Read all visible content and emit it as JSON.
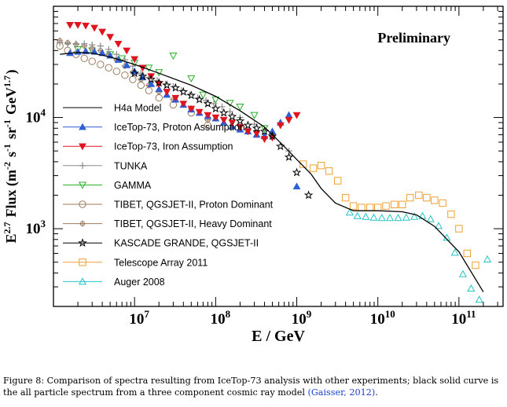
{
  "chart_data": {
    "type": "scatter",
    "annotation": "Preliminary",
    "xlabel": "E / GeV",
    "ylabel": "E^2.7 Flux (m^-2 s^-1 sr^-1 GeV^1.7)",
    "x_scale": "log",
    "y_scale": "log",
    "xlim": [
      1000000,
      350000000000
    ],
    "ylim": [
      200,
      100000
    ],
    "x_ticks": [
      {
        "value": 10000000,
        "base": "10",
        "exp": "7"
      },
      {
        "value": 100000000,
        "base": "10",
        "exp": "8"
      },
      {
        "value": 1000000000,
        "base": "10",
        "exp": "9"
      },
      {
        "value": 10000000000,
        "base": "10",
        "exp": "10"
      },
      {
        "value": 100000000000,
        "base": "10",
        "exp": "11"
      }
    ],
    "y_ticks": [
      {
        "value": 1000,
        "base": "10",
        "exp": "3"
      },
      {
        "value": 10000,
        "base": "10",
        "exp": "4"
      }
    ],
    "legend_position": "left",
    "series": [
      {
        "name": "H4a Model",
        "style": "line",
        "color": "#000000",
        "x": [
          1200000.0,
          2000000.0,
          3000000.0,
          5000000.0,
          10000000.0,
          20000000.0,
          50000000.0,
          100000000.0,
          200000000.0,
          400000000.0,
          700000000.0,
          1000000000.0,
          1500000000.0,
          2000000000.0,
          3000000000.0,
          5000000000.0,
          10000000000.0,
          20000000000.0,
          30000000000.0,
          50000000000.0,
          100000000000.0,
          200000000000.0
        ],
        "y": [
          37000,
          38500,
          38000,
          35000,
          30000,
          25000,
          19500,
          15500,
          11500,
          8200,
          5500,
          4200,
          3100,
          2300,
          1700,
          1450,
          1450,
          1420,
          1330,
          1050,
          620,
          270
        ]
      },
      {
        "name": "IceTop-73, Proton Assumption",
        "style": "markers",
        "marker": "triangle-up-filled",
        "color": "#2f5fd6",
        "x": [
          1600000.0,
          2000000.0,
          2500000.0,
          3200000.0,
          4000000.0,
          5000000.0,
          6300000.0,
          8000000.0,
          10000000.0,
          12600000.0,
          16000000.0,
          20000000.0,
          25000000.0,
          32000000.0,
          40000000.0,
          50000000.0,
          63000000.0,
          80000000.0,
          100000000.0,
          126000000.0,
          160000000.0,
          200000000.0,
          250000000.0,
          320000000.0,
          400000000.0,
          500000000.0,
          630000000.0,
          800000000.0,
          1000000000.0
        ],
        "y": [
          38000,
          39000,
          39500,
          39000,
          38000,
          36000,
          33000,
          29500,
          26000,
          23000,
          20000,
          18000,
          16000,
          14500,
          13000,
          11800,
          11000,
          10300,
          9800,
          9000,
          8300,
          7800,
          7500,
          7000,
          6800,
          7500,
          9000,
          10500,
          2400
        ]
      },
      {
        "name": "IceTop-73, Iron Assumption",
        "style": "markers",
        "marker": "triangle-down-filled",
        "color": "#e0141e",
        "x": [
          1600000.0,
          2000000.0,
          2500000.0,
          3200000.0,
          4000000.0,
          5000000.0,
          6300000.0,
          8000000.0,
          10000000.0,
          12600000.0,
          16000000.0,
          20000000.0,
          25000000.0,
          32000000.0,
          40000000.0,
          50000000.0,
          63000000.0,
          80000000.0,
          100000000.0,
          126000000.0,
          160000000.0,
          200000000.0,
          250000000.0,
          320000000.0,
          400000000.0,
          500000000.0,
          630000000.0,
          800000000.0,
          1000000000.0
        ],
        "y": [
          68000,
          68000,
          67000,
          64000,
          59000,
          53000,
          46000,
          40000,
          33500,
          28000,
          23500,
          20000,
          17000,
          15000,
          13300,
          12000,
          11200,
          10500,
          10000,
          9500,
          9000,
          8200,
          7500,
          7200,
          6400,
          6600,
          8500,
          9500,
          10500
        ]
      },
      {
        "name": "TUNKA",
        "style": "markers",
        "marker": "plus",
        "color": "#8a8a8a",
        "x": [
          1200000.0,
          1500000.0,
          1900000.0,
          2400000.0,
          3000000.0,
          3800000.0,
          4800000.0,
          6000000.0,
          7600000.0,
          9500000.0,
          12000000.0,
          15000000.0,
          19000000.0,
          24000000.0,
          30000000.0,
          38000000.0,
          48000000.0,
          60000000.0,
          76000000.0,
          95000000.0,
          120000000.0,
          150000000.0,
          200000000.0,
          300000000.0,
          500000000.0,
          800000000.0
        ],
        "y": [
          47000,
          46000,
          46000,
          46000,
          45000,
          44000,
          41000,
          37000,
          33000,
          29000,
          25000,
          23000,
          21500,
          20000,
          19000,
          17500,
          16000,
          15000,
          14200,
          13300,
          12500,
          11300,
          10000,
          8700,
          6700,
          5000
        ]
      },
      {
        "name": "GAMMA",
        "style": "markers",
        "marker": "triangle-down-open",
        "color": "#26b026",
        "x": [
          2000000.0,
          3000000.0,
          5000000.0,
          7000000.0,
          10000000.0,
          15000000.0,
          20000000.0,
          30000000.0,
          50000000.0,
          70000000.0,
          100000000.0,
          150000000.0,
          200000000.0,
          300000000.0,
          400000000.0
        ],
        "y": [
          41000,
          40000,
          37000,
          34000,
          31000,
          28000,
          25500,
          36000,
          22500,
          16000,
          14500,
          13500,
          12500,
          10500,
          8000
        ]
      },
      {
        "name": "TIBET, QGSJET-II, Proton Dominant",
        "style": "markers",
        "marker": "circle-open",
        "color": "#9c7c5e",
        "x": [
          1200000.0,
          1500000.0,
          1900000.0,
          2400000.0,
          3000000.0,
          3800000.0,
          4800000.0,
          6000000.0,
          7600000.0,
          9500000.0,
          12000000.0,
          15000000.0,
          20000000.0,
          30000000.0,
          50000000.0,
          80000000.0
        ],
        "y": [
          44000,
          40000,
          37000,
          34000,
          32000,
          30000,
          28000,
          26000,
          24000,
          22000,
          19500,
          17500,
          15000,
          13000,
          11000,
          8500
        ]
      },
      {
        "name": "TIBET, QGSJET-II, Heavy Dominant",
        "style": "markers",
        "marker": "plus-circle",
        "color": "#9c7c5e",
        "x": [
          1200000.0,
          1500000.0,
          1900000.0,
          2400000.0,
          3000000.0,
          3800000.0,
          4800000.0,
          6000000.0,
          7600000.0,
          9500000.0,
          12000000.0,
          15000000.0,
          20000000.0,
          30000000.0,
          50000000.0,
          80000000.0
        ],
        "y": [
          49000,
          47000,
          45500,
          44000,
          42000,
          40000,
          37000,
          33000,
          29000,
          25500,
          22000,
          19500,
          17000,
          14500,
          12000,
          9500
        ]
      },
      {
        "name": "KASCADE GRANDE, QGSJET-II",
        "style": "markers",
        "marker": "star-open",
        "color": "#000000",
        "x": [
          10000000.0,
          12600000.0,
          16000000.0,
          20000000.0,
          25000000.0,
          32000000.0,
          40000000.0,
          50000000.0,
          63000000.0,
          80000000.0,
          100000000.0,
          126000000.0,
          160000000.0,
          200000000.0,
          250000000.0,
          320000000.0,
          400000000.0,
          500000000.0,
          630000000.0,
          800000000.0,
          1000000000.0,
          1400000000.0
        ],
        "y": [
          25000,
          23500,
          22000,
          20500,
          19500,
          18500,
          17000,
          15800,
          14500,
          13300,
          12000,
          11000,
          10200,
          9300,
          8500,
          8000,
          7500,
          6800,
          5500,
          4400,
          3200,
          2000
        ]
      },
      {
        "name": "Telescope Array 2011",
        "style": "markers",
        "marker": "square-open",
        "color": "#f0a030",
        "x": [
          1200000000.0,
          1600000000.0,
          2000000000.0,
          2500000000.0,
          3200000000.0,
          4000000000.0,
          5000000000.0,
          6300000000.0,
          8000000000.0,
          10000000000.0,
          12600000000.0,
          16000000000.0,
          20000000000.0,
          25000000000.0,
          32000000000.0,
          40000000000.0,
          50000000000.0,
          63000000000.0,
          80000000000.0,
          100000000000.0,
          126000000000.0,
          160000000000.0
        ],
        "y": [
          3800,
          3500,
          3700,
          3300,
          2700,
          1900,
          1600,
          1550,
          1550,
          1550,
          1600,
          1650,
          1650,
          1900,
          2000,
          1900,
          1800,
          1700,
          1350,
          1000,
          600,
          470
        ]
      },
      {
        "name": "Auger 2008",
        "style": "markers",
        "marker": "triangle-up-open",
        "color": "#22c4c4",
        "x": [
          4500000000.0,
          5600000000.0,
          7100000000.0,
          8900000000.0,
          11200000000.0,
          14100000000.0,
          17800000000.0,
          22400000000.0,
          28200000000.0,
          35500000000.0,
          44700000000.0,
          56200000000.0,
          70800000000.0,
          89100000000.0,
          112000000000.0,
          141000000000.0,
          178000000000.0,
          224000000000.0
        ],
        "y": [
          1400,
          1300,
          1280,
          1260,
          1250,
          1250,
          1250,
          1260,
          1280,
          1300,
          1220,
          1060,
          830,
          610,
          390,
          290,
          230,
          530
        ]
      }
    ]
  },
  "caption": {
    "text": "Figure 8: Comparison of spectra resulting from IceTop-73 analysis with other experiments; black solid curve is the all particle spectrum from a three component cosmic ray model",
    "citation": "(Gaisser, 2012)",
    "end": "."
  }
}
